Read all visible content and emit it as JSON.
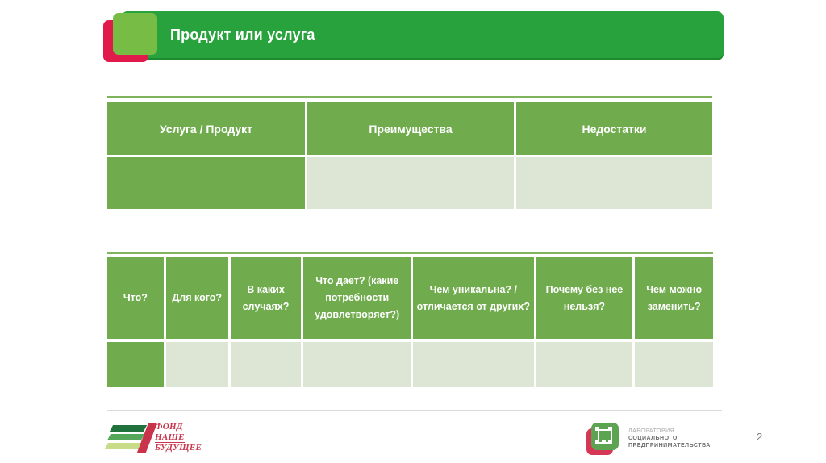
{
  "header": {
    "title": "Продукт или услуга"
  },
  "tables": {
    "products": {
      "headers": [
        "Услуга  / Продукт",
        "Преимущества",
        "Недостатки"
      ],
      "row_values": [
        "",
        "",
        ""
      ]
    },
    "details": {
      "headers": [
        "Что?",
        "Для кого?",
        "В каких случаях?",
        "Что дает? (какие потребности удовлетворяет?)",
        "Чем уникальна? / отличается от других?",
        "Почему без нее нельзя?",
        "Чем можно заменить?"
      ],
      "row_values": [
        "",
        "",
        "",
        "",
        "",
        "",
        ""
      ]
    }
  },
  "footer": {
    "fond_logo_lines": [
      "ФОНД",
      "НАШЕ",
      "БУДУЩЕЕ"
    ],
    "lab_logo_lines": [
      "ЛАБОРАТОРИЯ",
      "СОЦИАЛЬНОГО",
      "ПРЕДПРИНИМАТЕЛЬСТВА"
    ],
    "page_number": "2"
  },
  "colors": {
    "banner_green": "#28a23c",
    "accent_light_green": "#77bc45",
    "accent_red": "#e11a4c",
    "table_header_green": "#70ac4d",
    "table_cell_light": "#dde5d5",
    "table_top_line": "#7fb45c"
  }
}
